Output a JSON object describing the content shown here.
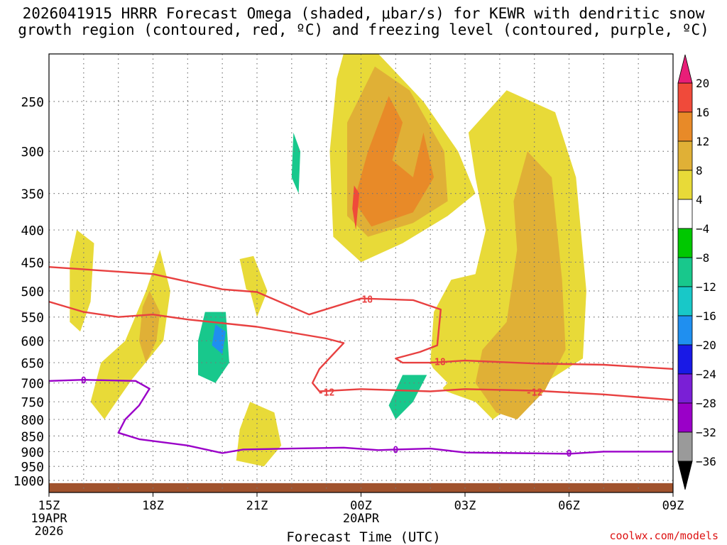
{
  "title_line1": "2026041915 HRRR Forecast Omega (shaded, μbar/s) for KEWR with dendritic snow",
  "title_line2": "growth region (contoured, red, ºC) and freezing level (contoured, purple, ºC)",
  "watermark": "coolwx.com/models",
  "chart_data": {
    "type": "contour",
    "title": "2026041915 HRRR Forecast Omega (shaded, μbar/s) for KEWR with dendritic snow growth region (contoured, red, ºC) and freezing level (contoured, purple, ºC)",
    "xlabel": "Forecast Time (UTC)",
    "ylabel": "Pressure (hPa)",
    "x_ticks": [
      {
        "hour": 0,
        "label": "15Z",
        "sub1": "19APR",
        "sub2": "2026"
      },
      {
        "hour": 3,
        "label": "18Z",
        "sub1": "",
        "sub2": ""
      },
      {
        "hour": 6,
        "label": "21Z",
        "sub1": "",
        "sub2": ""
      },
      {
        "hour": 9,
        "label": "00Z",
        "sub1": "20APR",
        "sub2": ""
      },
      {
        "hour": 12,
        "label": "03Z",
        "sub1": "",
        "sub2": ""
      },
      {
        "hour": 15,
        "label": "06Z",
        "sub1": "",
        "sub2": ""
      },
      {
        "hour": 18,
        "label": "09Z",
        "sub1": "",
        "sub2": ""
      }
    ],
    "xlim": [
      0,
      18
    ],
    "y_ticks": [
      250,
      300,
      350,
      400,
      450,
      500,
      550,
      600,
      650,
      700,
      750,
      800,
      850,
      900,
      950,
      1000
    ],
    "ylim": [
      1050,
      200
    ],
    "colorbar": {
      "levels": [
        -36,
        -32,
        -28,
        -24,
        -20,
        -16,
        -12,
        -8,
        -4,
        4,
        8,
        12,
        16,
        20
      ],
      "colors": [
        "#000000",
        "#9a9a9a",
        "#9a00c8",
        "#7a1fd6",
        "#1919e6",
        "#1f8ff0",
        "#18c8c8",
        "#18c88c",
        "#00c800",
        "#ffffff",
        "#e8da38",
        "#e0b036",
        "#e88a28",
        "#f04a3a",
        "#e81e78"
      ]
    },
    "contours": [
      {
        "name": "red-18",
        "label": "-18",
        "color": "#e84040",
        "label_positions": [
          [
            9.1,
            515
          ],
          [
            11.2,
            647
          ]
        ]
      },
      {
        "name": "red-12",
        "label": "-12",
        "color": "#e84040",
        "label_positions": [
          [
            8.0,
            724
          ],
          [
            14.0,
            724
          ]
        ]
      },
      {
        "name": "purple-0",
        "label": "0",
        "color": "#9a00c8",
        "label_positions": [
          [
            1.0,
            693
          ],
          [
            10.0,
            893
          ],
          [
            15.0,
            905
          ]
        ]
      }
    ],
    "shaded_regions": [
      {
        "name": "omega-up-upper-big",
        "value": 4,
        "points": [
          [
            8.6,
            200
          ],
          [
            9.5,
            210
          ],
          [
            10.8,
            250
          ],
          [
            11.8,
            300
          ],
          [
            12.3,
            350
          ],
          [
            11.5,
            380
          ],
          [
            10.2,
            420
          ],
          [
            9.0,
            450
          ],
          [
            8.2,
            410
          ],
          [
            8.1,
            300
          ],
          [
            8.3,
            230
          ]
        ]
      },
      {
        "name": "omega-up-upper-mid",
        "value": 8,
        "points": [
          [
            9.4,
            220
          ],
          [
            10.4,
            240
          ],
          [
            11.4,
            300
          ],
          [
            11.5,
            360
          ],
          [
            10.5,
            390
          ],
          [
            9.2,
            410
          ],
          [
            8.6,
            380
          ],
          [
            8.6,
            270
          ]
        ]
      },
      {
        "name": "omega-up-upper-core",
        "value": 12,
        "points": [
          [
            9.8,
            245
          ],
          [
            10.2,
            270
          ],
          [
            9.9,
            310
          ],
          [
            10.5,
            330
          ],
          [
            10.8,
            280
          ],
          [
            11.1,
            330
          ],
          [
            10.5,
            375
          ],
          [
            9.3,
            395
          ],
          [
            8.8,
            360
          ],
          [
            9.2,
            300
          ]
        ]
      },
      {
        "name": "omega-up-upper-peak",
        "value": 16,
        "points": [
          [
            8.8,
            340
          ],
          [
            8.95,
            350
          ],
          [
            8.85,
            400
          ],
          [
            8.75,
            370
          ]
        ]
      },
      {
        "name": "omega-up-east-big",
        "value": 4,
        "points": [
          [
            12.1,
            280
          ],
          [
            13.2,
            240
          ],
          [
            14.6,
            260
          ],
          [
            15.2,
            330
          ],
          [
            15.5,
            500
          ],
          [
            15.4,
            640
          ],
          [
            14.3,
            700
          ],
          [
            13.5,
            750
          ],
          [
            12.8,
            800
          ],
          [
            12.3,
            750
          ],
          [
            11.4,
            720
          ],
          [
            11.0,
            650
          ],
          [
            11.1,
            540
          ],
          [
            11.6,
            480
          ],
          [
            12.3,
            470
          ],
          [
            12.6,
            400
          ],
          [
            12.3,
            330
          ]
        ]
      },
      {
        "name": "omega-up-east-mid",
        "value": 8,
        "points": [
          [
            13.8,
            300
          ],
          [
            14.5,
            330
          ],
          [
            14.8,
            480
          ],
          [
            14.9,
            620
          ],
          [
            14.3,
            720
          ],
          [
            13.5,
            800
          ],
          [
            12.9,
            780
          ],
          [
            12.3,
            700
          ],
          [
            12.5,
            620
          ],
          [
            13.2,
            560
          ],
          [
            13.5,
            430
          ],
          [
            13.4,
            360
          ]
        ]
      },
      {
        "name": "omega-up-left",
        "value": 4,
        "points": [
          [
            0.8,
            400
          ],
          [
            1.3,
            420
          ],
          [
            1.2,
            520
          ],
          [
            0.9,
            580
          ],
          [
            0.6,
            560
          ],
          [
            0.6,
            450
          ]
        ]
      },
      {
        "name": "omega-up-left2",
        "value": 4,
        "points": [
          [
            3.2,
            430
          ],
          [
            3.5,
            500
          ],
          [
            3.3,
            600
          ],
          [
            2.4,
            690
          ],
          [
            1.8,
            770
          ],
          [
            1.6,
            800
          ],
          [
            1.2,
            750
          ],
          [
            1.5,
            650
          ],
          [
            2.2,
            600
          ],
          [
            2.8,
            500
          ]
        ]
      },
      {
        "name": "omega-up-left2-core",
        "value": 8,
        "points": [
          [
            2.9,
            500
          ],
          [
            3.2,
            540
          ],
          [
            3.1,
            600
          ],
          [
            2.8,
            650
          ],
          [
            2.6,
            600
          ],
          [
            2.7,
            530
          ]
        ]
      },
      {
        "name": "omega-up-mid-small",
        "value": 4,
        "points": [
          [
            5.1,
            450
          ],
          [
            5.9,
            440
          ],
          [
            6.3,
            500
          ],
          [
            6.0,
            550
          ],
          [
            5.8,
            500
          ],
          [
            5.4,
            490
          ]
        ]
      },
      {
        "name": "omega-up-mid-low",
        "value": 4,
        "points": [
          [
            5.8,
            750
          ],
          [
            6.5,
            780
          ],
          [
            6.7,
            880
          ],
          [
            6.2,
            950
          ],
          [
            5.4,
            930
          ],
          [
            5.5,
            830
          ]
        ]
      },
      {
        "name": "omega-dn-left-strip",
        "value": -4,
        "points": [
          [
            1.8,
            450
          ],
          [
            2.2,
            470
          ],
          [
            2.1,
            550
          ],
          [
            1.7,
            540
          ],
          [
            1.65,
            480
          ]
        ]
      },
      {
        "name": "omega-dn-left-blob",
        "value": -4,
        "points": [
          [
            1.0,
            830
          ],
          [
            1.6,
            870
          ],
          [
            1.5,
            910
          ],
          [
            0.9,
            910
          ],
          [
            0.7,
            880
          ]
        ]
      },
      {
        "name": "omega-dn-mid-big",
        "value": -4,
        "points": [
          [
            4.0,
            330
          ],
          [
            5.2,
            300
          ],
          [
            5.6,
            350
          ],
          [
            5.4,
            420
          ],
          [
            5.7,
            500
          ],
          [
            5.9,
            620
          ],
          [
            5.6,
            700
          ],
          [
            5.0,
            690
          ],
          [
            4.5,
            720
          ],
          [
            4.0,
            800
          ],
          [
            3.6,
            820
          ],
          [
            3.7,
            720
          ],
          [
            4.1,
            600
          ],
          [
            4.1,
            480
          ],
          [
            3.9,
            400
          ]
        ]
      },
      {
        "name": "omega-dn-mid-cyan",
        "value": -12,
        "points": [
          [
            4.5,
            540
          ],
          [
            5.1,
            540
          ],
          [
            5.2,
            650
          ],
          [
            4.8,
            700
          ],
          [
            4.3,
            680
          ],
          [
            4.3,
            600
          ]
        ]
      },
      {
        "name": "omega-dn-mid-blue",
        "value": -20,
        "points": [
          [
            4.8,
            565
          ],
          [
            5.1,
            580
          ],
          [
            5.0,
            630
          ],
          [
            4.7,
            610
          ]
        ]
      },
      {
        "name": "omega-dn-tall-upper",
        "value": -4,
        "points": [
          [
            6.9,
            250
          ],
          [
            7.3,
            250
          ],
          [
            7.4,
            340
          ],
          [
            7.2,
            400
          ],
          [
            6.8,
            380
          ],
          [
            6.7,
            300
          ]
        ]
      },
      {
        "name": "omega-dn-tall-upper-core",
        "value": -12,
        "points": [
          [
            7.05,
            280
          ],
          [
            7.25,
            300
          ],
          [
            7.2,
            350
          ],
          [
            7.0,
            330
          ]
        ]
      },
      {
        "name": "omega-dn-tall-lower",
        "value": -4,
        "points": [
          [
            6.8,
            540
          ],
          [
            7.1,
            560
          ],
          [
            7.4,
            700
          ],
          [
            7.3,
            850
          ],
          [
            6.9,
            870
          ],
          [
            6.6,
            760
          ],
          [
            6.6,
            620
          ]
        ]
      },
      {
        "name": "omega-dn-lower-center",
        "value": -4,
        "points": [
          [
            9.8,
            650
          ],
          [
            10.8,
            640
          ],
          [
            11.5,
            700
          ],
          [
            10.5,
            800
          ],
          [
            9.9,
            870
          ],
          [
            9.2,
            920
          ],
          [
            8.9,
            900
          ],
          [
            9.5,
            750
          ]
        ]
      },
      {
        "name": "omega-dn-lower-center-core",
        "value": -12,
        "points": [
          [
            10.2,
            680
          ],
          [
            10.9,
            680
          ],
          [
            10.5,
            750
          ],
          [
            10.0,
            800
          ],
          [
            9.8,
            760
          ]
        ]
      },
      {
        "name": "omega-dn-small-00z",
        "value": -4,
        "points": [
          [
            9.9,
            510
          ],
          [
            10.2,
            520
          ],
          [
            10.1,
            580
          ],
          [
            9.9,
            570
          ]
        ]
      },
      {
        "name": "omega-dn-bottom-right",
        "value": -4,
        "points": [
          [
            11.8,
            880
          ],
          [
            12.8,
            860
          ],
          [
            13.0,
            920
          ],
          [
            14.5,
            935
          ],
          [
            15.0,
            990
          ],
          [
            14.0,
            1000
          ],
          [
            12.4,
            960
          ],
          [
            11.8,
            940
          ]
        ]
      },
      {
        "name": "omega-dn-right-upper",
        "value": -4,
        "points": [
          [
            16.9,
            220
          ],
          [
            17.5,
            205
          ],
          [
            18.0,
            210
          ],
          [
            18.0,
            260
          ],
          [
            17.1,
            260
          ],
          [
            16.8,
            240
          ]
        ]
      },
      {
        "name": "omega-dn-right-lower",
        "value": -4,
        "points": [
          [
            16.2,
            630
          ],
          [
            16.8,
            650
          ],
          [
            17.3,
            700
          ],
          [
            17.5,
            800
          ],
          [
            17.6,
            890
          ],
          [
            17.1,
            900
          ],
          [
            16.6,
            820
          ],
          [
            16.2,
            720
          ]
        ]
      }
    ]
  }
}
